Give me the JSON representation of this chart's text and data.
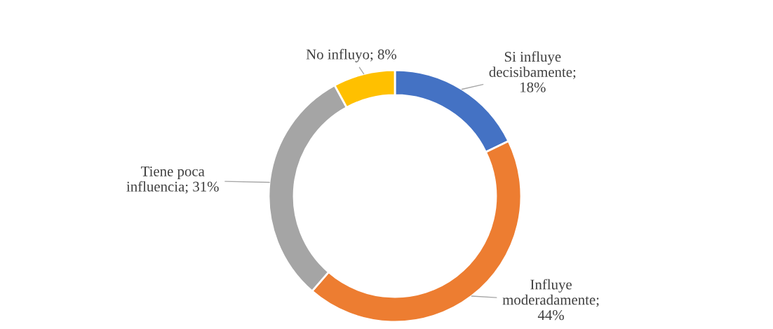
{
  "chart_data": {
    "type": "donut",
    "categories": [
      "Si influye decisibamente",
      "Influye moderadamente",
      "Tiene poca influencia",
      "No influyo"
    ],
    "values": [
      18,
      44,
      31,
      8
    ],
    "colors": [
      "#4472c4",
      "#ed7d31",
      "#a5a5a5",
      "#ffc000"
    ],
    "value_labels": [
      "; 18%",
      "; 44%",
      "; 31%",
      "; 8%"
    ],
    "legend": false
  }
}
